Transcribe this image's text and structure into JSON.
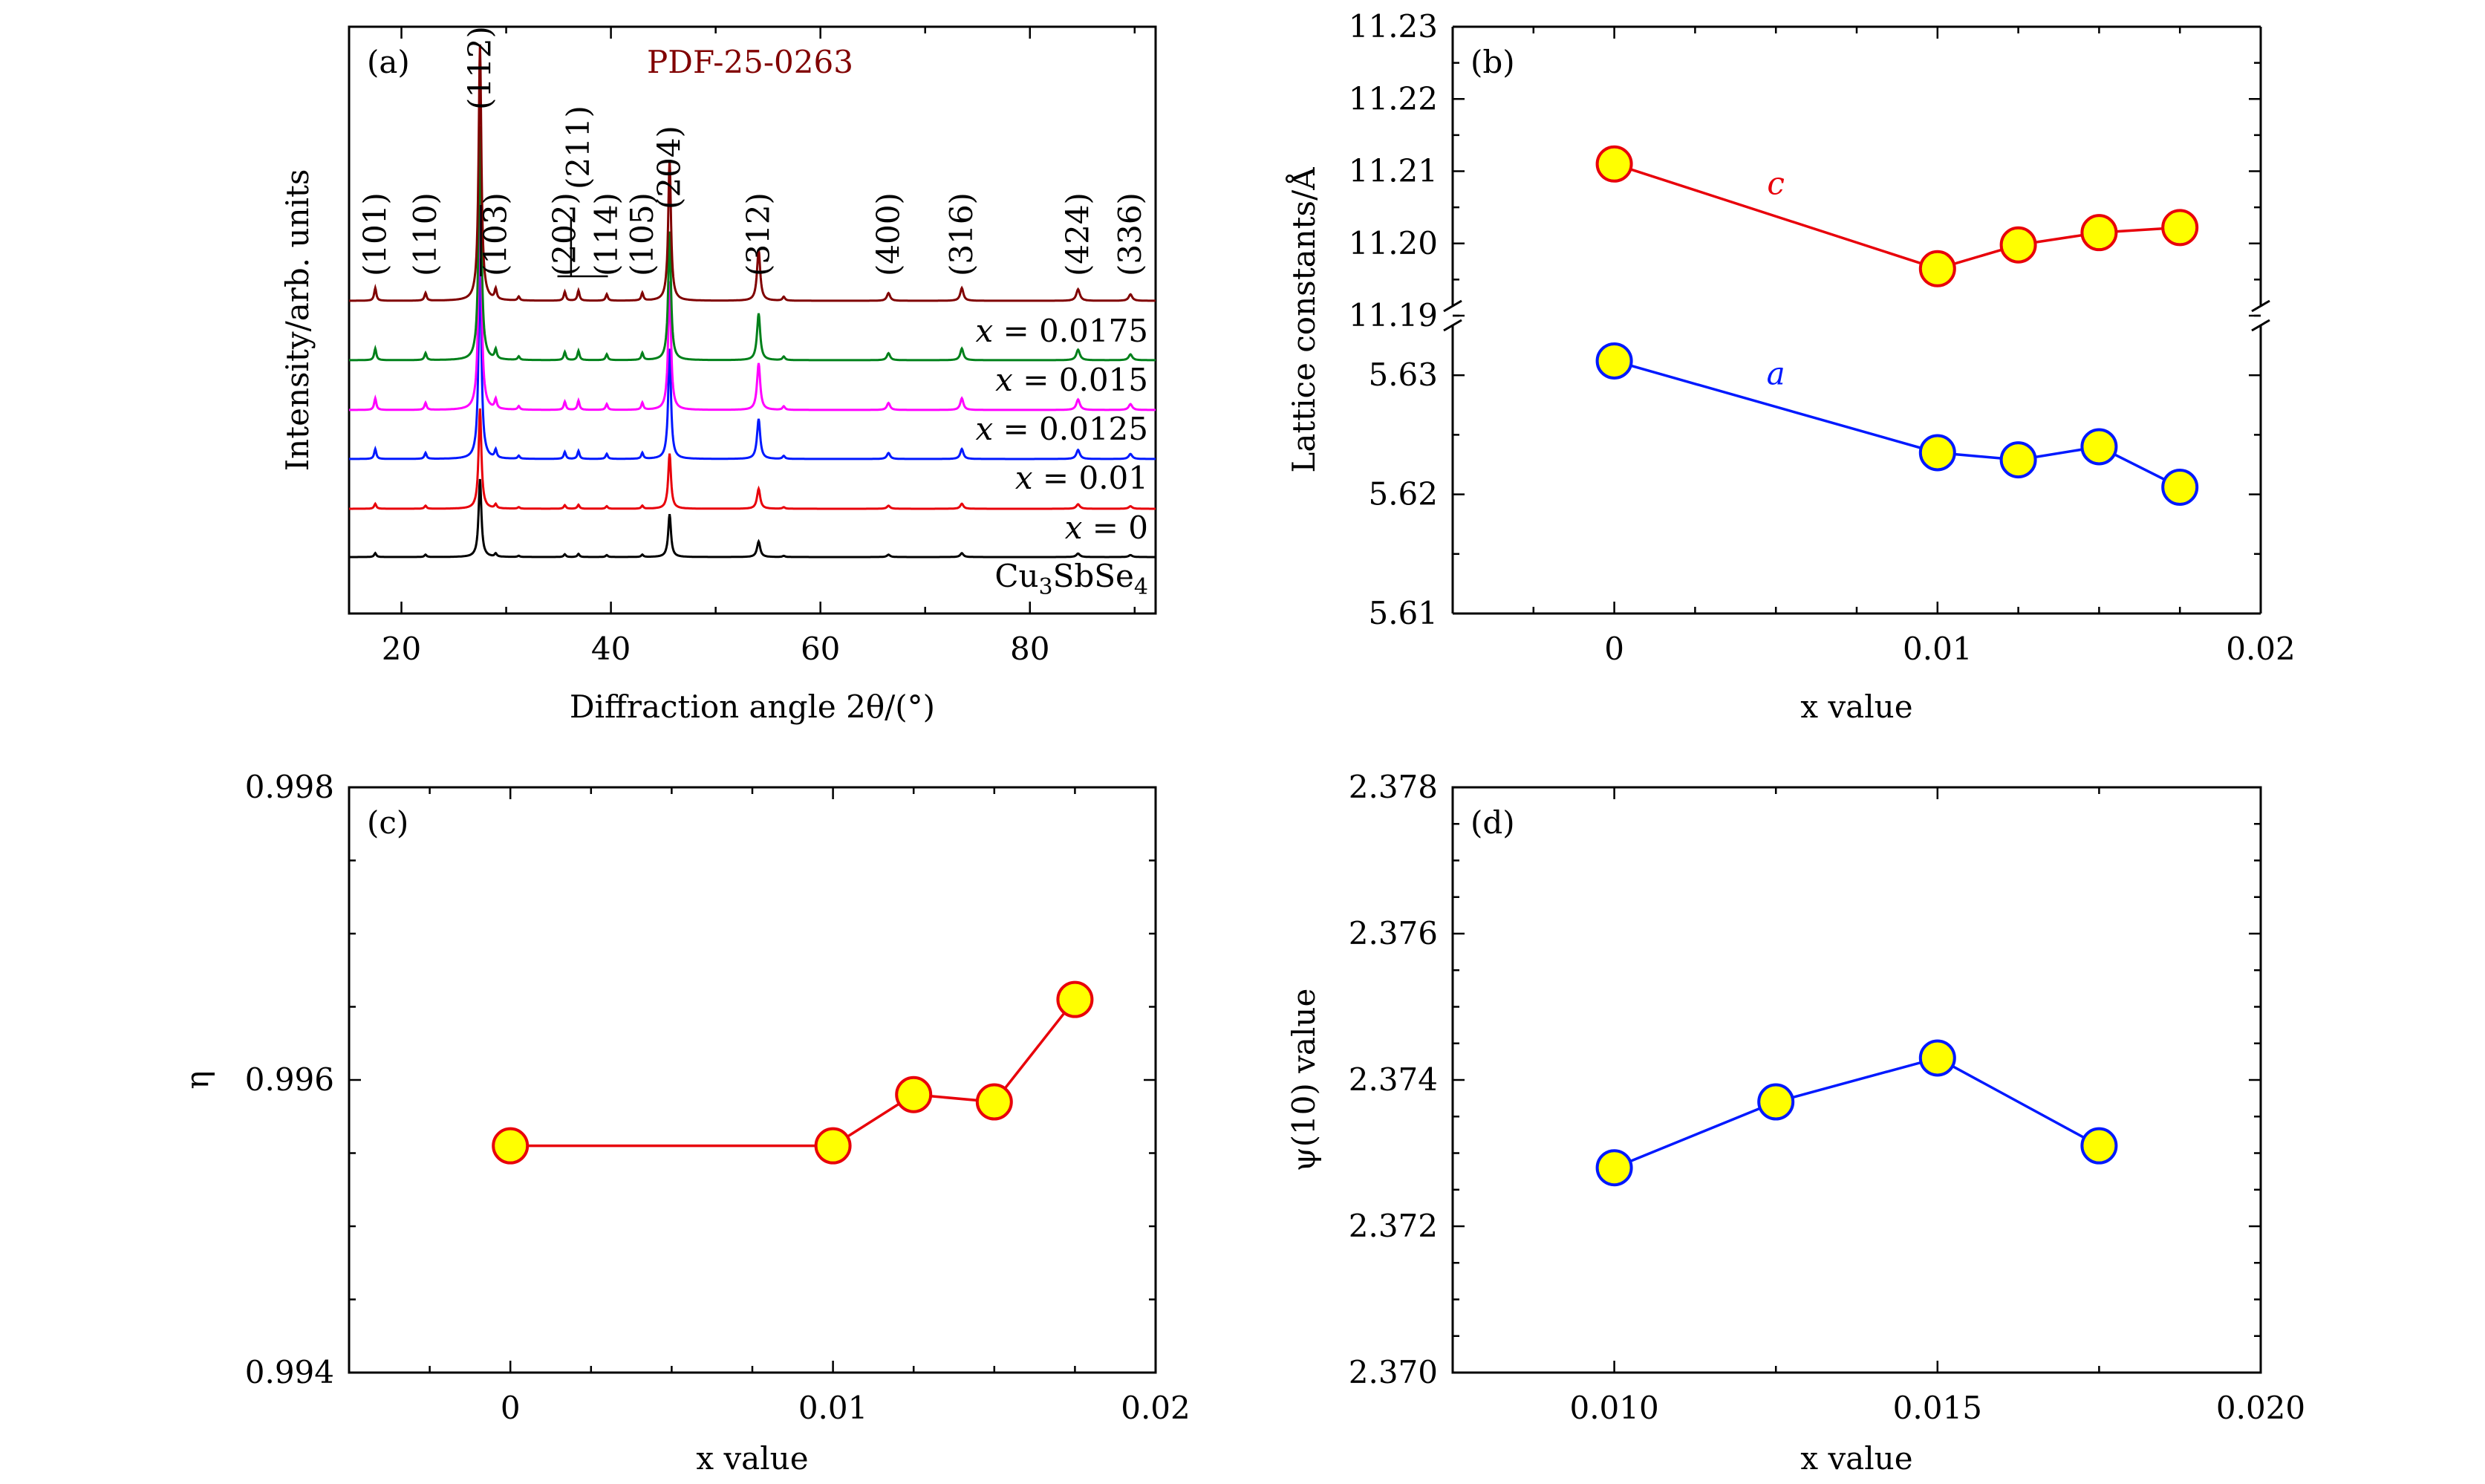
{
  "chart_data": [
    {
      "panel_label": "(a)",
      "type": "line",
      "xlabel": "Diffraction angle 2θ/(°)",
      "ylabel": "Intensity/arb. units",
      "xlim": [
        15,
        92
      ],
      "xticks": [
        "20",
        "40",
        "60",
        "80"
      ],
      "reference_label": "PDF-25-0263",
      "peak_labels": [
        {
          "hkl": "(101)",
          "two_theta": 17.5
        },
        {
          "hkl": "(110)",
          "two_theta": 22.3
        },
        {
          "hkl": "(112)",
          "two_theta": 27.5
        },
        {
          "hkl": "(103)",
          "two_theta": 29.0
        },
        {
          "hkl": "(202)",
          "two_theta": 35.6
        },
        {
          "hkl": "(211)",
          "two_theta": 36.9
        },
        {
          "hkl": "(114)",
          "two_theta": 39.6
        },
        {
          "hkl": "(105)",
          "two_theta": 43.0
        },
        {
          "hkl": "(204)",
          "two_theta": 45.6
        },
        {
          "hkl": "(312)",
          "two_theta": 54.1
        },
        {
          "hkl": "(400)",
          "two_theta": 66.5
        },
        {
          "hkl": "(316)",
          "two_theta": 73.5
        },
        {
          "hkl": "(424)",
          "two_theta": 84.6
        },
        {
          "hkl": "(336)",
          "two_theta": 89.6
        }
      ],
      "series": [
        {
          "label": "Cu3SbSe4",
          "color": "#000000",
          "scale": 0.35
        },
        {
          "label": "x = 0",
          "color": "#e8000a",
          "scale": 0.45
        },
        {
          "label": "x = 0.01",
          "color": "#0019ff",
          "scale": 0.9
        },
        {
          "label": "x = 0.0125",
          "color": "#ff00ff",
          "scale": 1.05
        },
        {
          "label": "x = 0.015",
          "color": "#00801a",
          "scale": 1.05
        },
        {
          "label": "x = 0.0175",
          "color": "#800000",
          "scale": 1.15
        }
      ]
    },
    {
      "panel_label": "(b)",
      "type": "scatter",
      "xlabel": "x value",
      "ylabel": "Lattice constants/Å",
      "xlim": [
        -0.005,
        0.02
      ],
      "xticks": [
        "0",
        "0.01",
        "0.02"
      ],
      "upper_ylim": [
        11.19,
        11.23
      ],
      "upper_yticks": [
        "11.19",
        "11.20",
        "11.21",
        "11.22",
        "11.23"
      ],
      "lower_ylim": [
        5.61,
        5.635
      ],
      "lower_yticks": [
        "5.61",
        "5.62",
        "5.63"
      ],
      "series": [
        {
          "name": "c",
          "color": "#e8000a",
          "x": [
            0,
            0.01,
            0.0125,
            0.015,
            0.0175
          ],
          "y": [
            11.211,
            11.1965,
            11.1998,
            11.2015,
            11.2022
          ]
        },
        {
          "name": "a",
          "color": "#0019ff",
          "x": [
            0,
            0.01,
            0.0125,
            0.015,
            0.0175
          ],
          "y": [
            5.6312,
            5.6235,
            5.6229,
            5.624,
            5.6206
          ]
        }
      ]
    },
    {
      "panel_label": "(c)",
      "type": "scatter",
      "xlabel": "x value",
      "ylabel": "η",
      "xlim": [
        -0.005,
        0.02
      ],
      "ylim": [
        0.994,
        0.998
      ],
      "xticks": [
        "0",
        "0.01",
        "0.02"
      ],
      "yticks": [
        "0.994",
        "0.996",
        "0.998"
      ],
      "series": [
        {
          "color": "#e8000a",
          "x": [
            0,
            0.01,
            0.0125,
            0.015,
            0.0175
          ],
          "y": [
            0.99555,
            0.99555,
            0.9959,
            0.99585,
            0.99655
          ]
        }
      ]
    },
    {
      "panel_label": "(d)",
      "type": "scatter",
      "xlabel": "x value",
      "ylabel": "ψ(10) value",
      "xlim": [
        0.0075,
        0.02
      ],
      "ylim": [
        2.37,
        2.378
      ],
      "xticks": [
        "0.010",
        "0.015",
        "0.020"
      ],
      "yticks": [
        "2.370",
        "2.372",
        "2.374",
        "2.376",
        "2.378"
      ],
      "series": [
        {
          "color": "#0019ff",
          "x": [
            0.01,
            0.0125,
            0.015,
            0.0175
          ],
          "y": [
            2.3728,
            2.3737,
            2.3743,
            2.3731
          ]
        }
      ]
    }
  ]
}
